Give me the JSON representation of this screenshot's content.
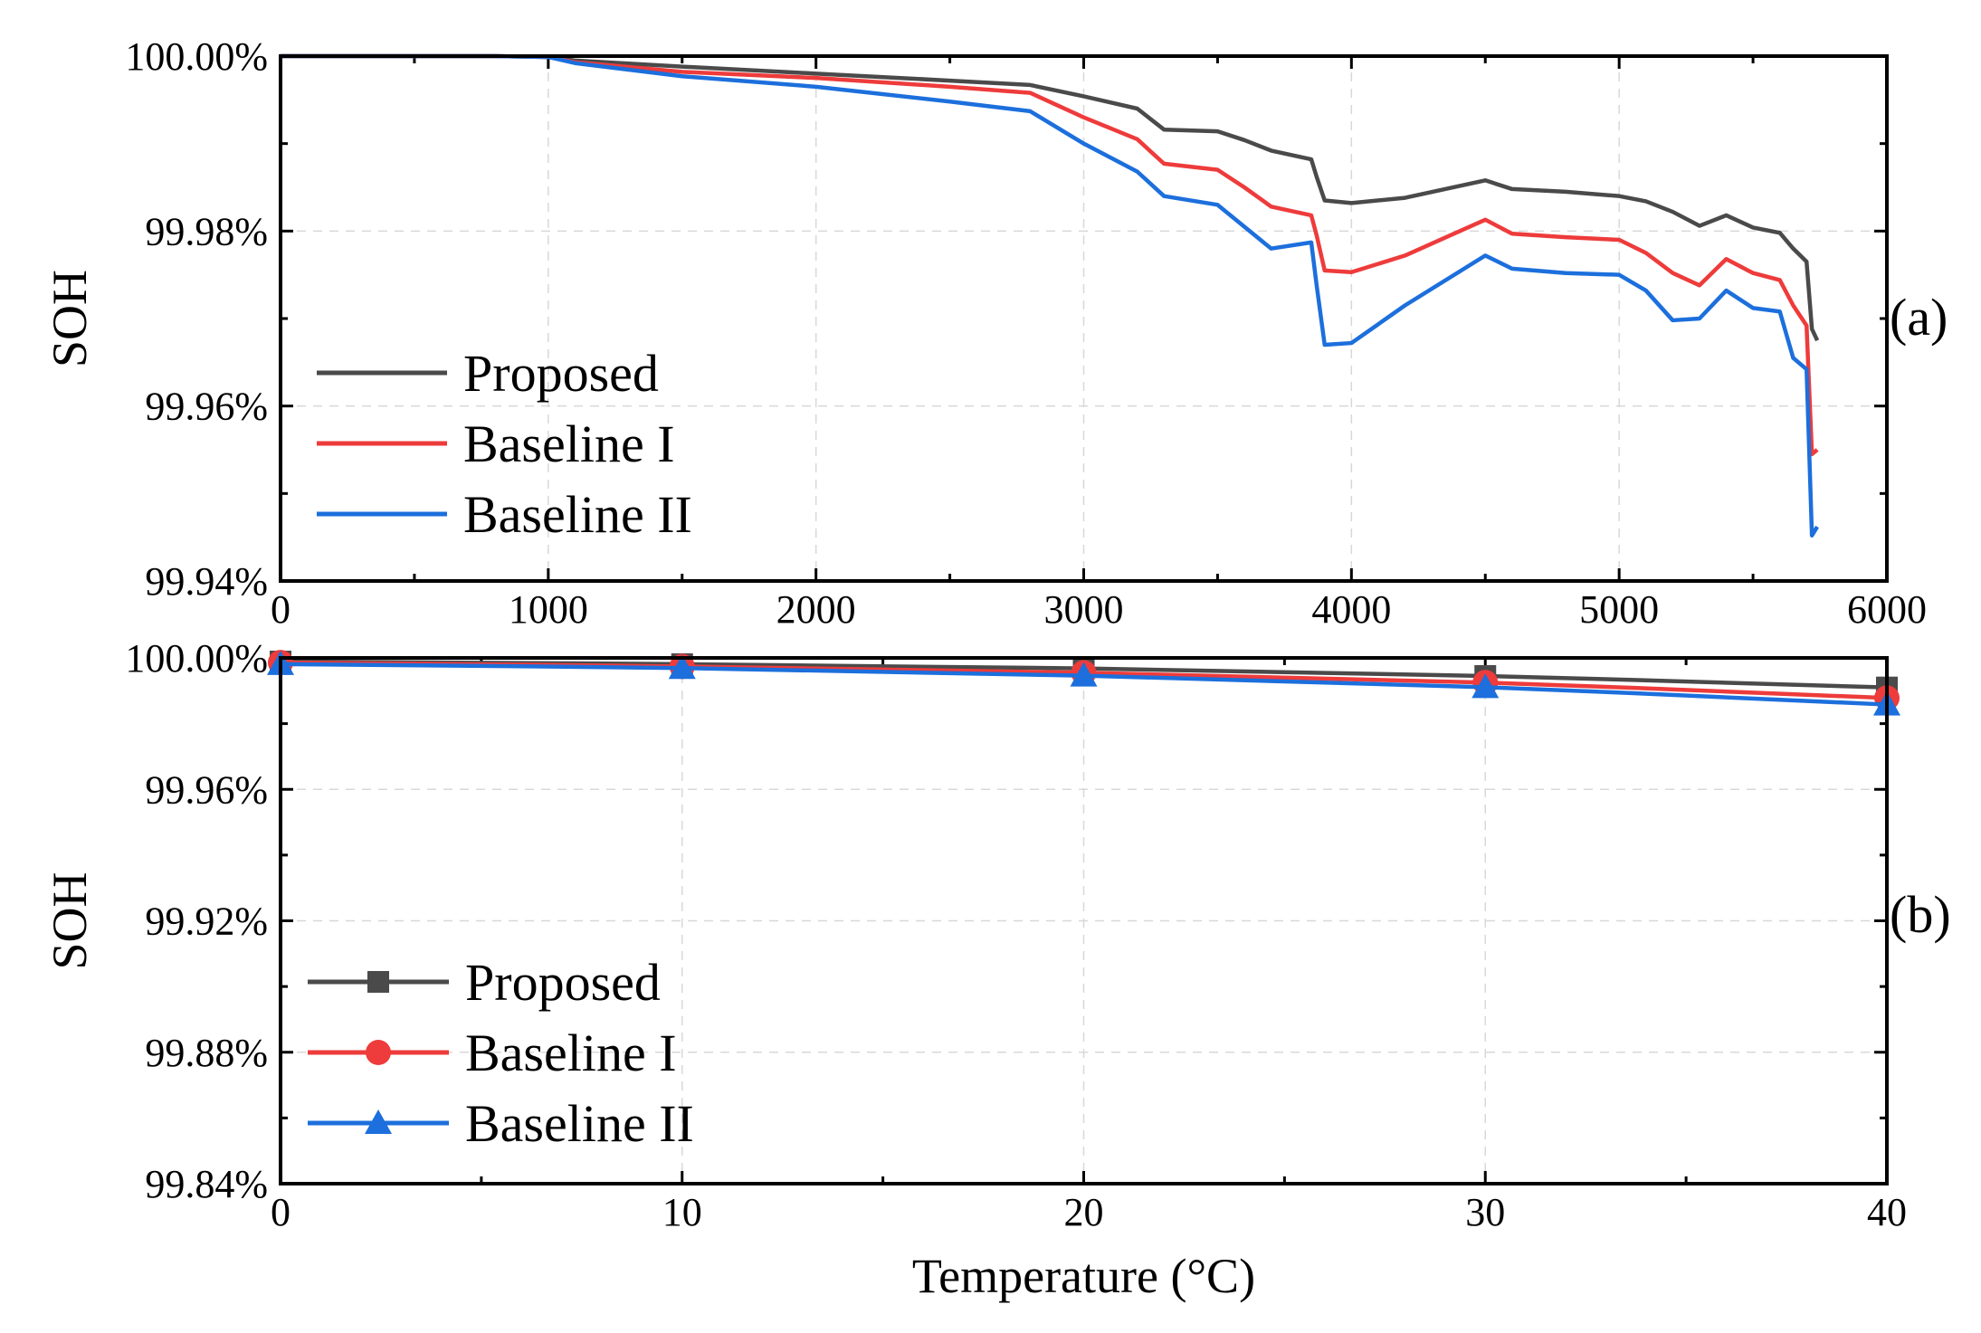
{
  "chart_data": [
    {
      "panel": "(a)",
      "type": "line",
      "title": "",
      "xlabel": "",
      "ylabel": "SOH",
      "xlim": [
        0,
        6000
      ],
      "ylim": [
        99.94,
        100.0
      ],
      "xticks": [
        "0",
        "1000",
        "2000",
        "3000",
        "4000",
        "5000",
        "6000"
      ],
      "yticks": [
        "99.94%",
        "99.96%",
        "99.98%",
        "100.00%"
      ],
      "grid": true,
      "legend_position": "bottom-left",
      "series": [
        {
          "name": "Proposed",
          "color": "#4a4a4a",
          "x": [
            0,
            800,
            1000,
            1100,
            1500,
            2000,
            2500,
            2800,
            3000,
            3200,
            3300,
            3500,
            3600,
            3700,
            3850,
            3870,
            3900,
            4000,
            4200,
            4500,
            4600,
            4800,
            5000,
            5100,
            5200,
            5300,
            5400,
            5500,
            5600,
            5650,
            5700,
            5720,
            5740
          ],
          "y": [
            100.0,
            100.0,
            99.9999,
            99.9995,
            99.9988,
            99.998,
            99.9972,
            99.9967,
            99.9954,
            99.994,
            99.9916,
            99.9914,
            99.9904,
            99.9892,
            99.9882,
            99.9862,
            99.9835,
            99.9832,
            99.9838,
            99.9858,
            99.9848,
            99.9845,
            99.984,
            99.9834,
            99.9822,
            99.9806,
            99.9818,
            99.9804,
            99.9798,
            99.978,
            99.9765,
            99.9688,
            99.9675
          ]
        },
        {
          "name": "Baseline I",
          "color": "#ee3b3b",
          "x": [
            0,
            800,
            1000,
            1100,
            1500,
            2000,
            2500,
            2800,
            3000,
            3200,
            3300,
            3500,
            3600,
            3700,
            3850,
            3870,
            3900,
            4000,
            4200,
            4500,
            4600,
            4800,
            5000,
            5100,
            5200,
            5300,
            5400,
            5500,
            5600,
            5650,
            5700,
            5720,
            5740
          ],
          "y": [
            100.0,
            100.0,
            99.9999,
            99.9993,
            99.9982,
            99.9975,
            99.9965,
            99.9958,
            99.993,
            99.9905,
            99.9877,
            99.987,
            99.985,
            99.9828,
            99.9818,
            99.9795,
            99.9755,
            99.9753,
            99.9772,
            99.9813,
            99.9797,
            99.9793,
            99.979,
            99.9775,
            99.9752,
            99.9738,
            99.9768,
            99.9752,
            99.9744,
            99.9715,
            99.9692,
            99.9545,
            99.955
          ]
        },
        {
          "name": "Baseline II",
          "color": "#1c6fdc",
          "x": [
            0,
            800,
            1000,
            1100,
            1500,
            2000,
            2500,
            2800,
            3000,
            3200,
            3300,
            3500,
            3600,
            3700,
            3850,
            3870,
            3900,
            4000,
            4200,
            4500,
            4600,
            4800,
            5000,
            5100,
            5200,
            5300,
            5400,
            5500,
            5600,
            5650,
            5700,
            5720,
            5740
          ],
          "y": [
            100.0,
            100.0,
            99.9999,
            99.9992,
            99.9977,
            99.9965,
            99.9948,
            99.9937,
            99.99,
            99.9868,
            99.984,
            99.983,
            99.9805,
            99.978,
            99.9787,
            99.9738,
            99.967,
            99.9672,
            99.9715,
            99.9772,
            99.9757,
            99.9752,
            99.975,
            99.9732,
            99.9698,
            99.97,
            99.9732,
            99.9712,
            99.9708,
            99.9655,
            99.9642,
            99.9452,
            99.9462
          ]
        }
      ]
    },
    {
      "panel": "(b)",
      "type": "line",
      "title": "",
      "xlabel": "Temperature (°C)",
      "ylabel": "SOH",
      "xlim": [
        0,
        40
      ],
      "ylim": [
        99.84,
        100.0
      ],
      "xticks": [
        "0",
        "10",
        "20",
        "30",
        "40"
      ],
      "yticks": [
        "99.84%",
        "99.88%",
        "99.92%",
        "99.96%",
        "100.00%"
      ],
      "grid": true,
      "legend_position": "bottom-left",
      "series": [
        {
          "name": "Proposed",
          "color": "#4a4a4a",
          "marker": "square",
          "x": [
            0,
            10,
            20,
            30,
            40
          ],
          "y": [
            99.9989,
            99.9981,
            99.9968,
            99.9945,
            99.991
          ]
        },
        {
          "name": "Baseline I",
          "color": "#ee3b3b",
          "marker": "circle",
          "x": [
            0,
            10,
            20,
            30,
            40
          ],
          "y": [
            99.9986,
            99.9974,
            99.9955,
            99.9925,
            99.9878
          ]
        },
        {
          "name": "Baseline II",
          "color": "#1c6fdc",
          "marker": "triangle",
          "x": [
            0,
            10,
            20,
            30,
            40
          ],
          "y": [
            99.9981,
            99.9969,
            99.9946,
            99.9911,
            99.9858
          ]
        }
      ]
    }
  ]
}
